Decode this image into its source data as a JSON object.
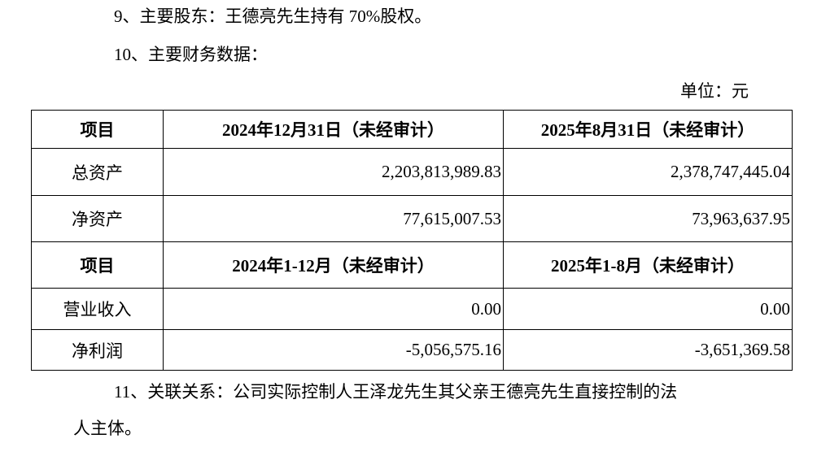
{
  "paragraphs": {
    "p9": "9、主要股东：王德亮先生持有 70%股权。",
    "p10": "10、主要财务数据：",
    "unit": "单位：元",
    "p11_line1": "11、关联关系：公司实际控制人王泽龙先生其父亲王德亮先生直接控制的法",
    "p11_line2": "人主体。"
  },
  "table": {
    "header1": [
      "项目",
      "2024年12月31日（未经审计）",
      "2025年8月31日（未经审计）"
    ],
    "rows1": [
      [
        "总资产",
        "2,203,813,989.83",
        "2,378,747,445.04"
      ],
      [
        "净资产",
        "77,615,007.53",
        "73,963,637.95"
      ]
    ],
    "header2": [
      "项目",
      "2024年1-12月（未经审计）",
      "2025年1-8月（未经审计）"
    ],
    "rows2": [
      [
        "营业收入",
        "0.00",
        "0.00"
      ],
      [
        "净利润",
        "-5,056,575.16",
        "-3,651,369.58"
      ]
    ]
  }
}
